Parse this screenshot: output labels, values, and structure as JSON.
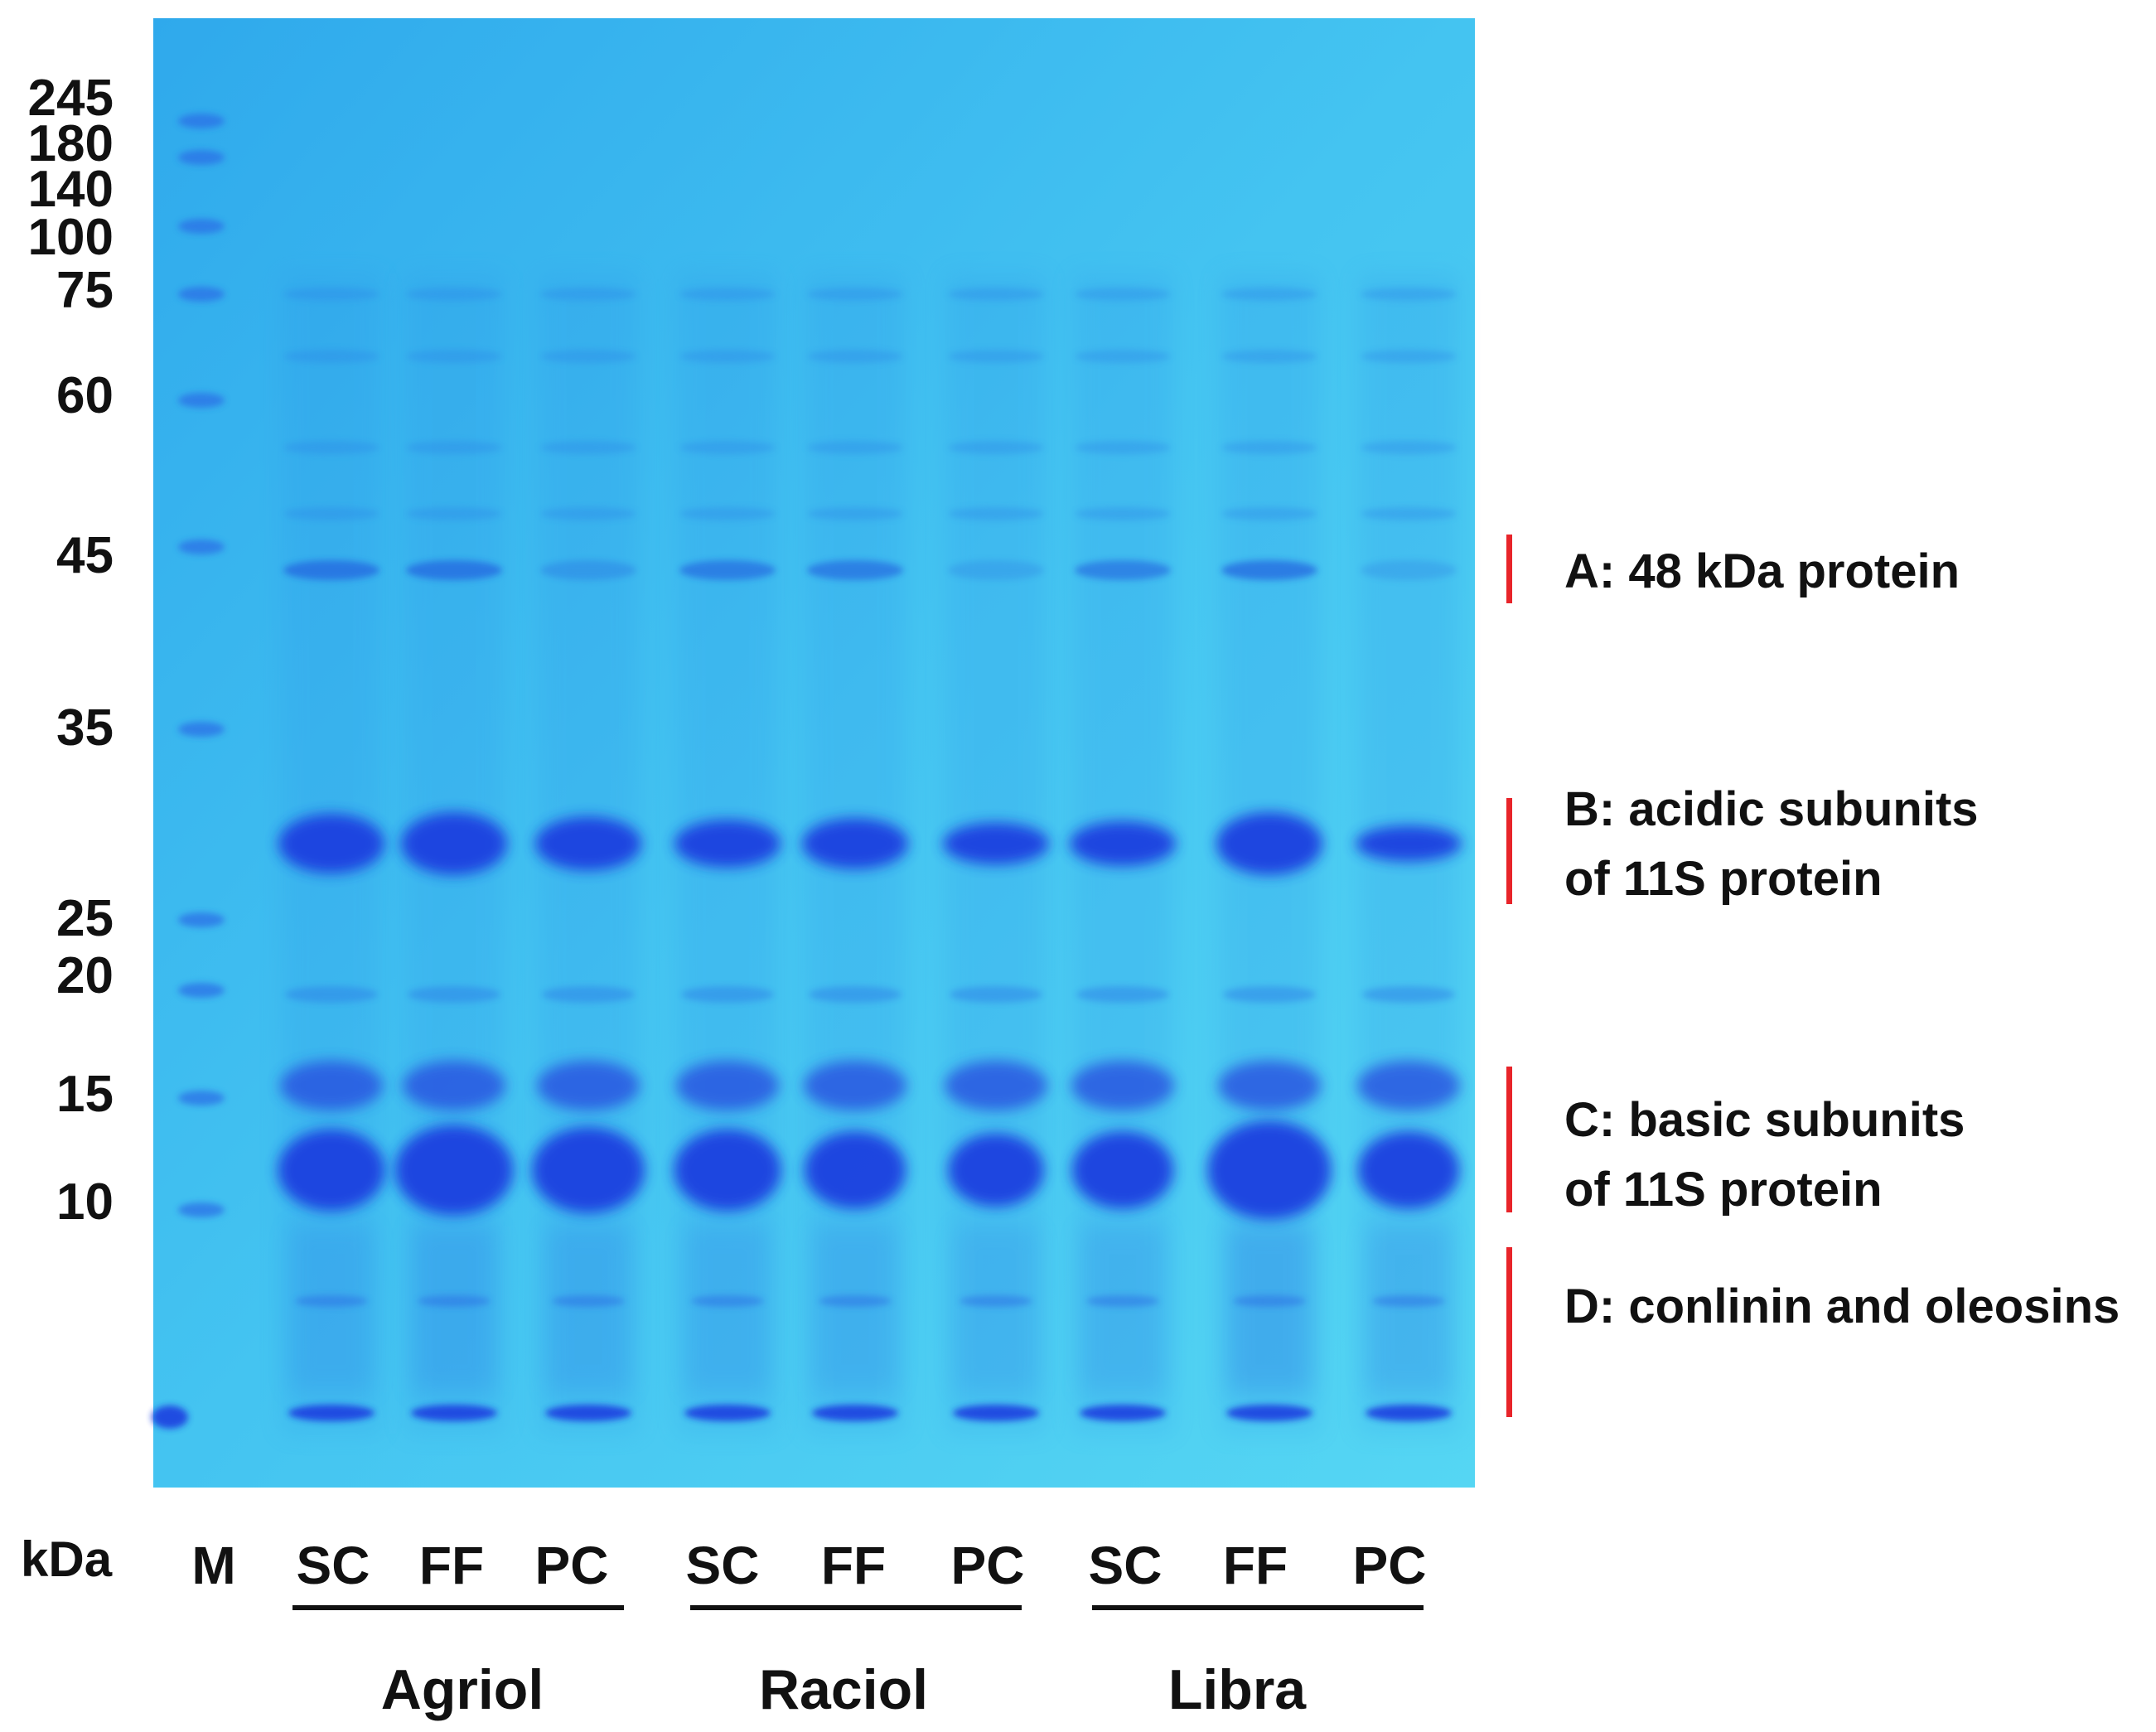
{
  "mw_markers": [
    "245",
    "180",
    "140",
    "100",
    "75",
    "60",
    "45",
    "35",
    "25",
    "20",
    "15",
    "10"
  ],
  "axis_unit": "kDa",
  "lanes": [
    {
      "label": "M"
    },
    {
      "label": "SC"
    },
    {
      "label": "FF"
    },
    {
      "label": "PC"
    },
    {
      "label": "SC"
    },
    {
      "label": "FF"
    },
    {
      "label": "PC"
    },
    {
      "label": "SC"
    },
    {
      "label": "FF"
    },
    {
      "label": "PC"
    }
  ],
  "groups": [
    {
      "label": "Agriol"
    },
    {
      "label": "Raciol"
    },
    {
      "label": "Libra"
    }
  ],
  "annotations": [
    {
      "line1": "A: 48 kDa protein",
      "line2": ""
    },
    {
      "line1": "B: acidic subunits",
      "line2": "of 11S protein"
    },
    {
      "line1": "C: basic subunits",
      "line2": "of 11S protein"
    },
    {
      "line1": "D: conlinin and oleosins",
      "line2": ""
    }
  ],
  "colors": {
    "gel_background": "#3fc3ef",
    "band_dark": "#1f3fe0",
    "marker_color": "#e8242a",
    "text": "#111111"
  }
}
